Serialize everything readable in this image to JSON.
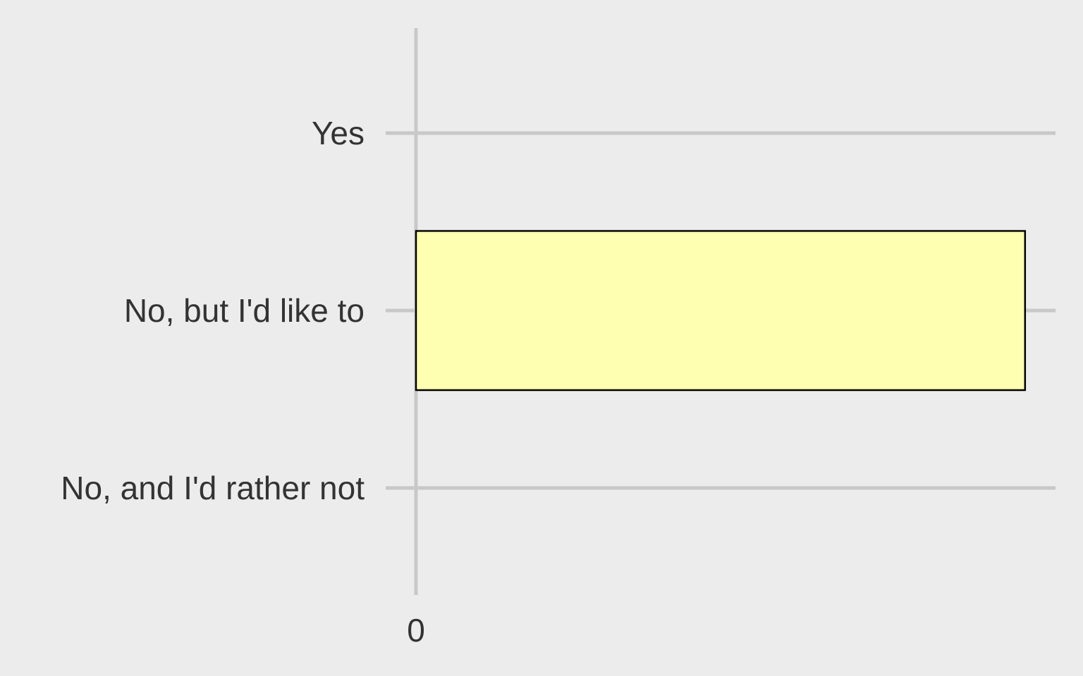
{
  "chart_data": {
    "type": "bar",
    "orientation": "horizontal",
    "categories": [
      "Yes",
      "No, but I'd like to",
      "No, and I'd rather not"
    ],
    "values": [
      0,
      1,
      0
    ],
    "x_ticks": [
      "0"
    ],
    "xlim": [
      0,
      1.05
    ],
    "grid": true,
    "legend": "none",
    "colors": {
      "bar_fill": "#ffffb2",
      "bar_stroke": "#000000",
      "grid": "#c8c8c8",
      "background": "#ececec",
      "text": "#333333"
    },
    "title": "",
    "xlabel": "",
    "ylabel": ""
  }
}
